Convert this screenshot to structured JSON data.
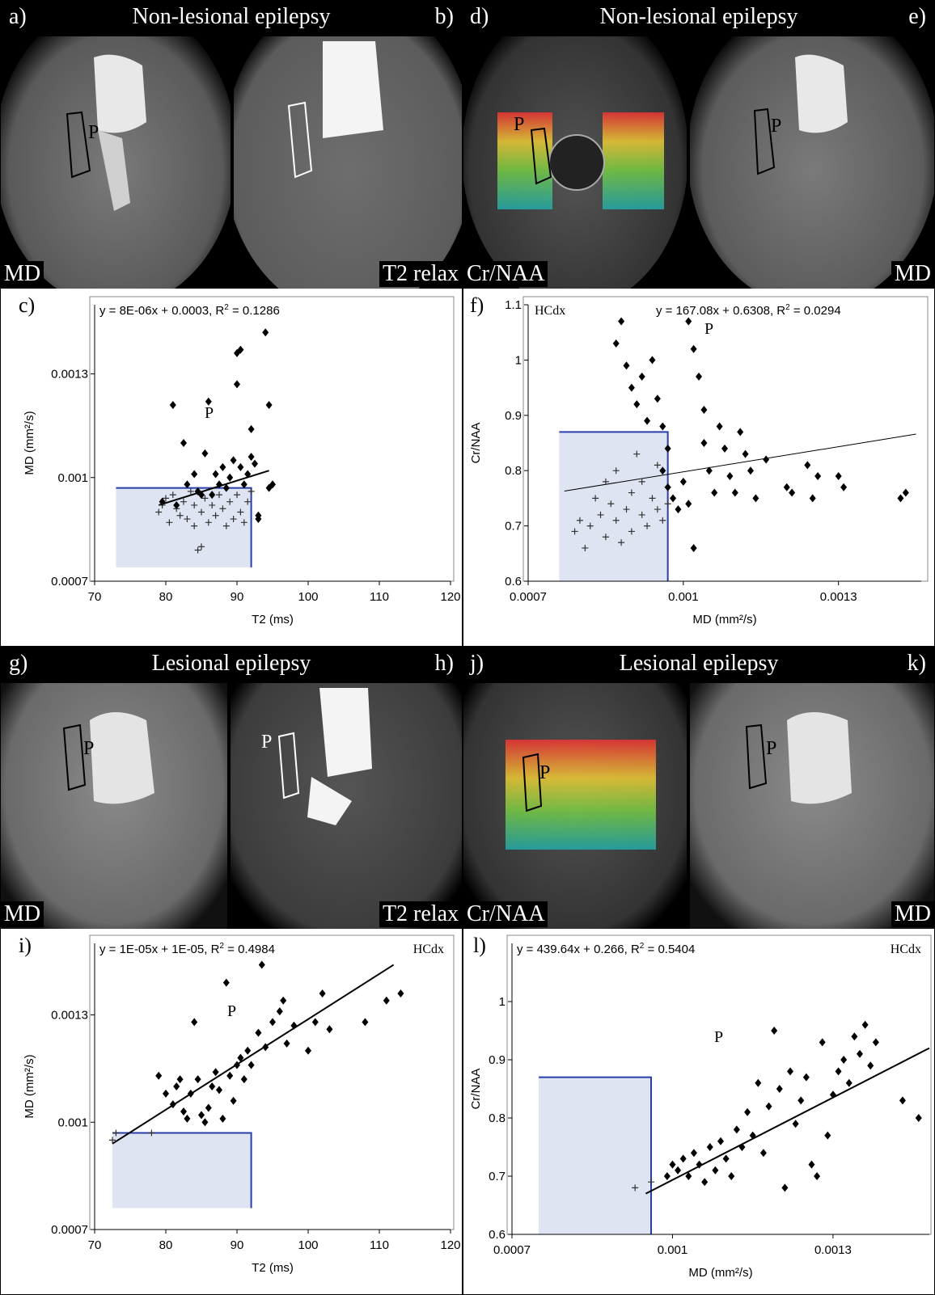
{
  "top_left": {
    "title": "Non-lesional epilepsy",
    "panel_a": "a)",
    "panel_b": "b)",
    "corner_a": "MD",
    "corner_b": "T2 relax",
    "roi_label": "P"
  },
  "top_right": {
    "title": "Non-lesional epilepsy",
    "panel_d": "d)",
    "panel_e": "e)",
    "corner_d": "Cr/NAA",
    "corner_e": "MD",
    "roi_label": "P"
  },
  "bottom_left": {
    "title": "Lesional epilepsy",
    "panel_g": "g)",
    "panel_h": "h)",
    "corner_g": "MD",
    "corner_h": "T2 relax",
    "roi_label": "P"
  },
  "bottom_right": {
    "title": "Lesional epilepsy",
    "panel_j": "j)",
    "panel_k": "k)",
    "corner_j": "Cr/NAA",
    "corner_k": "MD",
    "roi_label": "P"
  },
  "chart_data": [
    {
      "id": "c",
      "panel_label": "c)",
      "type": "scatter",
      "equation": "y = 8E-06x + 0.0003, R",
      "eq_tail": " = 0.1286",
      "point_label": "P",
      "xlabel": "T2 (ms)",
      "ylabel": "MD (mm²/s)",
      "xlim": [
        70,
        120
      ],
      "ylim": [
        0.0007,
        0.0015
      ],
      "xticks": [
        "70",
        "80",
        "90",
        "100",
        "110",
        "120"
      ],
      "yticks": [
        "0.0007",
        "0.001",
        "0.0013"
      ],
      "hc_box": {
        "x": [
          73,
          92
        ],
        "y": [
          0.00074,
          0.00097
        ]
      },
      "fit": {
        "x": [
          79,
          94.5
        ],
        "y": [
          0.00092,
          0.00102
        ]
      },
      "patient": [
        [
          79.5,
          0.00093
        ],
        [
          81,
          0.00121
        ],
        [
          81.5,
          0.00092
        ],
        [
          82.5,
          0.0011
        ],
        [
          83,
          0.00098
        ],
        [
          84,
          0.00101
        ],
        [
          84.5,
          0.00096
        ],
        [
          85,
          0.00095
        ],
        [
          85.5,
          0.00107
        ],
        [
          86,
          0.00122
        ],
        [
          86.5,
          0.00095
        ],
        [
          87,
          0.00101
        ],
        [
          87.5,
          0.00098
        ],
        [
          88,
          0.00103
        ],
        [
          88.5,
          0.00097
        ],
        [
          89,
          0.001
        ],
        [
          89.5,
          0.00105
        ],
        [
          90,
          0.00127
        ],
        [
          90,
          0.00136
        ],
        [
          90.5,
          0.00137
        ],
        [
          90.5,
          0.00103
        ],
        [
          91,
          0.00098
        ],
        [
          91.5,
          0.00101
        ],
        [
          92,
          0.00106
        ],
        [
          92,
          0.00114
        ],
        [
          92.5,
          0.00104
        ],
        [
          93,
          0.00089
        ],
        [
          93,
          0.00088
        ],
        [
          94,
          0.00142
        ],
        [
          94.5,
          0.00121
        ],
        [
          94.5,
          0.00097
        ],
        [
          95,
          0.00098
        ]
      ],
      "controls": [
        [
          79,
          0.0009
        ],
        [
          79.5,
          0.00092
        ],
        [
          80,
          0.00094
        ],
        [
          80.5,
          0.00087
        ],
        [
          81,
          0.00095
        ],
        [
          81.5,
          0.00091
        ],
        [
          82,
          0.00089
        ],
        [
          82.5,
          0.00093
        ],
        [
          83,
          0.00088
        ],
        [
          83.5,
          0.00096
        ],
        [
          84,
          0.00086
        ],
        [
          84,
          0.00092
        ],
        [
          84.5,
          0.00079
        ],
        [
          85,
          0.0008
        ],
        [
          85,
          0.0009
        ],
        [
          85.5,
          0.00094
        ],
        [
          86,
          0.00087
        ],
        [
          86.5,
          0.00092
        ],
        [
          87,
          0.00089
        ],
        [
          87.5,
          0.00095
        ],
        [
          88,
          0.00091
        ],
        [
          88.5,
          0.00086
        ],
        [
          89,
          0.00093
        ],
        [
          89.5,
          0.00088
        ],
        [
          90,
          0.00095
        ],
        [
          90.5,
          0.0009
        ],
        [
          91,
          0.00087
        ],
        [
          91.5,
          0.00093
        ],
        [
          92,
          0.00096
        ]
      ]
    },
    {
      "id": "f",
      "panel_label": "f)",
      "type": "scatter",
      "hcdx_label": "HCdx",
      "equation": "y = 167.08x + 0.6308, R",
      "eq_tail": " = 0.0294",
      "point_label": "P",
      "xlabel": "MD (mm²/s)",
      "ylabel": "Cr/NAA",
      "xlim": [
        0.0007,
        0.00146
      ],
      "ylim": [
        0.6,
        1.1
      ],
      "xticks": [
        "0.0007",
        "0.001",
        "0.0013"
      ],
      "yticks": [
        "0.6",
        "0.7",
        "0.8",
        "0.9",
        "1",
        "1.1"
      ],
      "hc_box": {
        "x": [
          0.00076,
          0.00097
        ],
        "y": [
          0.6,
          0.87
        ]
      },
      "fit": {
        "x": [
          0.00077,
          0.00145
        ],
        "y": [
          0.763,
          0.866
        ]
      },
      "patient": [
        [
          0.00088,
          1.07
        ],
        [
          0.00087,
          1.03
        ],
        [
          0.00089,
          0.99
        ],
        [
          0.0009,
          0.95
        ],
        [
          0.00091,
          0.92
        ],
        [
          0.00092,
          0.97
        ],
        [
          0.00093,
          0.89
        ],
        [
          0.00094,
          1.0
        ],
        [
          0.00095,
          0.93
        ],
        [
          0.00096,
          0.88
        ],
        [
          0.00096,
          0.8
        ],
        [
          0.00097,
          0.84
        ],
        [
          0.00097,
          0.77
        ],
        [
          0.00098,
          0.75
        ],
        [
          0.00099,
          0.73
        ],
        [
          0.001,
          0.78
        ],
        [
          0.00101,
          0.74
        ],
        [
          0.00101,
          1.07
        ],
        [
          0.00102,
          1.02
        ],
        [
          0.00102,
          0.66
        ],
        [
          0.00103,
          0.97
        ],
        [
          0.00104,
          0.91
        ],
        [
          0.00104,
          0.85
        ],
        [
          0.00105,
          0.8
        ],
        [
          0.00106,
          0.76
        ],
        [
          0.00107,
          0.88
        ],
        [
          0.00108,
          0.84
        ],
        [
          0.00109,
          0.79
        ],
        [
          0.0011,
          0.76
        ],
        [
          0.00111,
          0.87
        ],
        [
          0.00112,
          0.83
        ],
        [
          0.00113,
          0.8
        ],
        [
          0.00114,
          0.75
        ],
        [
          0.00116,
          0.82
        ],
        [
          0.0012,
          0.77
        ],
        [
          0.00121,
          0.76
        ],
        [
          0.00124,
          0.81
        ],
        [
          0.00125,
          0.75
        ],
        [
          0.00126,
          0.79
        ],
        [
          0.0013,
          0.79
        ],
        [
          0.00131,
          0.77
        ],
        [
          0.00142,
          0.75
        ],
        [
          0.00143,
          0.76
        ]
      ],
      "controls": [
        [
          0.00079,
          0.69
        ],
        [
          0.0008,
          0.71
        ],
        [
          0.00081,
          0.66
        ],
        [
          0.00082,
          0.7
        ],
        [
          0.00083,
          0.75
        ],
        [
          0.00084,
          0.72
        ],
        [
          0.00085,
          0.78
        ],
        [
          0.00085,
          0.68
        ],
        [
          0.00086,
          0.74
        ],
        [
          0.00087,
          0.71
        ],
        [
          0.00087,
          0.8
        ],
        [
          0.00088,
          0.67
        ],
        [
          0.00089,
          0.73
        ],
        [
          0.0009,
          0.76
        ],
        [
          0.0009,
          0.69
        ],
        [
          0.00091,
          0.83
        ],
        [
          0.00092,
          0.72
        ],
        [
          0.00092,
          0.78
        ],
        [
          0.00093,
          0.7
        ],
        [
          0.00094,
          0.75
        ],
        [
          0.00095,
          0.73
        ],
        [
          0.00095,
          0.81
        ],
        [
          0.00096,
          0.71
        ],
        [
          0.00097,
          0.74
        ],
        [
          0.00097,
          0.77
        ]
      ]
    },
    {
      "id": "i",
      "panel_label": "i)",
      "type": "scatter",
      "hcdx_label": "HCdx",
      "equation": "y = 1E-05x + 1E-05, R",
      "eq_tail": " = 0.4984",
      "point_label": "P",
      "xlabel": "T2 (ms)",
      "ylabel": "MD (mm²/s)",
      "xlim": [
        70,
        120
      ],
      "ylim": [
        0.0007,
        0.0015
      ],
      "xticks": [
        "70",
        "80",
        "90",
        "100",
        "110",
        "120"
      ],
      "yticks": [
        "0.0007",
        "0.001",
        "0.0013"
      ],
      "hc_box": {
        "x": [
          72.5,
          92
        ],
        "y": [
          0.00076,
          0.00097
        ]
      },
      "fit": {
        "x": [
          72.5,
          112
        ],
        "y": [
          0.00094,
          0.00144
        ]
      },
      "patient": [
        [
          79,
          0.00113
        ],
        [
          80,
          0.00108
        ],
        [
          81,
          0.00105
        ],
        [
          81.5,
          0.0011
        ],
        [
          82,
          0.00112
        ],
        [
          82.5,
          0.00103
        ],
        [
          83,
          0.00101
        ],
        [
          83.5,
          0.00108
        ],
        [
          84,
          0.00128
        ],
        [
          84.5,
          0.00112
        ],
        [
          85,
          0.00102
        ],
        [
          85.5,
          0.001
        ],
        [
          86,
          0.00104
        ],
        [
          86.5,
          0.0011
        ],
        [
          87,
          0.00114
        ],
        [
          87.5,
          0.00109
        ],
        [
          88,
          0.00101
        ],
        [
          88.5,
          0.00139
        ],
        [
          89,
          0.00113
        ],
        [
          89.5,
          0.00106
        ],
        [
          90,
          0.00116
        ],
        [
          90.5,
          0.00118
        ],
        [
          91,
          0.00112
        ],
        [
          91.5,
          0.0012
        ],
        [
          92,
          0.00116
        ],
        [
          93,
          0.00125
        ],
        [
          93.5,
          0.00144
        ],
        [
          94,
          0.00121
        ],
        [
          95,
          0.00128
        ],
        [
          96,
          0.00131
        ],
        [
          96.5,
          0.00134
        ],
        [
          97,
          0.00122
        ],
        [
          98,
          0.00127
        ],
        [
          100,
          0.0012
        ],
        [
          101,
          0.00128
        ],
        [
          102,
          0.00136
        ],
        [
          103,
          0.00126
        ],
        [
          108,
          0.00128
        ],
        [
          111,
          0.00134
        ],
        [
          113,
          0.00136
        ]
      ],
      "controls": [
        [
          72.5,
          0.00095
        ],
        [
          73,
          0.00097
        ],
        [
          78,
          0.00097
        ]
      ]
    },
    {
      "id": "l",
      "panel_label": "l)",
      "type": "scatter",
      "hcdx_label": "HCdx",
      "equation": "y = 439.64x + 0.266, R",
      "eq_tail": " = 0.5404",
      "point_label": "P",
      "xlabel": "MD (mm²/s)",
      "ylabel": "Cr/NAA",
      "xlim": [
        0.0007,
        0.00148
      ],
      "ylim": [
        0.6,
        1.1
      ],
      "xticks": [
        "0.0007",
        "0.001",
        "0.0013"
      ],
      "yticks": [
        "0.6",
        "0.7",
        "0.8",
        "0.9",
        "1"
      ],
      "hc_box": {
        "x": [
          0.00075,
          0.00096
        ],
        "y": [
          0.6,
          0.87
        ]
      },
      "fit": {
        "x": [
          0.00095,
          0.00148
        ],
        "y": [
          0.67,
          0.92
        ]
      },
      "patient": [
        [
          0.00099,
          0.7
        ],
        [
          0.001,
          0.72
        ],
        [
          0.00101,
          0.71
        ],
        [
          0.00102,
          0.73
        ],
        [
          0.00103,
          0.7
        ],
        [
          0.00104,
          0.74
        ],
        [
          0.00105,
          0.72
        ],
        [
          0.00106,
          0.69
        ],
        [
          0.00107,
          0.75
        ],
        [
          0.00108,
          0.71
        ],
        [
          0.00109,
          0.76
        ],
        [
          0.0011,
          0.73
        ],
        [
          0.00111,
          0.7
        ],
        [
          0.00112,
          0.78
        ],
        [
          0.00113,
          0.75
        ],
        [
          0.00114,
          0.81
        ],
        [
          0.00115,
          0.77
        ],
        [
          0.00116,
          0.86
        ],
        [
          0.00117,
          0.74
        ],
        [
          0.00118,
          0.82
        ],
        [
          0.00119,
          0.95
        ],
        [
          0.0012,
          0.85
        ],
        [
          0.00121,
          0.68
        ],
        [
          0.00122,
          0.88
        ],
        [
          0.00123,
          0.79
        ],
        [
          0.00124,
          0.83
        ],
        [
          0.00125,
          0.87
        ],
        [
          0.00126,
          0.72
        ],
        [
          0.00127,
          0.7
        ],
        [
          0.00128,
          0.93
        ],
        [
          0.00129,
          0.77
        ],
        [
          0.0013,
          0.84
        ],
        [
          0.00131,
          0.88
        ],
        [
          0.00132,
          0.9
        ],
        [
          0.00133,
          0.86
        ],
        [
          0.00134,
          0.94
        ],
        [
          0.00135,
          0.91
        ],
        [
          0.00136,
          0.96
        ],
        [
          0.00137,
          0.89
        ],
        [
          0.00138,
          0.93
        ],
        [
          0.00143,
          0.83
        ],
        [
          0.00146,
          0.8
        ]
      ],
      "controls": [
        [
          0.00093,
          0.68
        ],
        [
          0.00096,
          0.69
        ]
      ]
    }
  ]
}
